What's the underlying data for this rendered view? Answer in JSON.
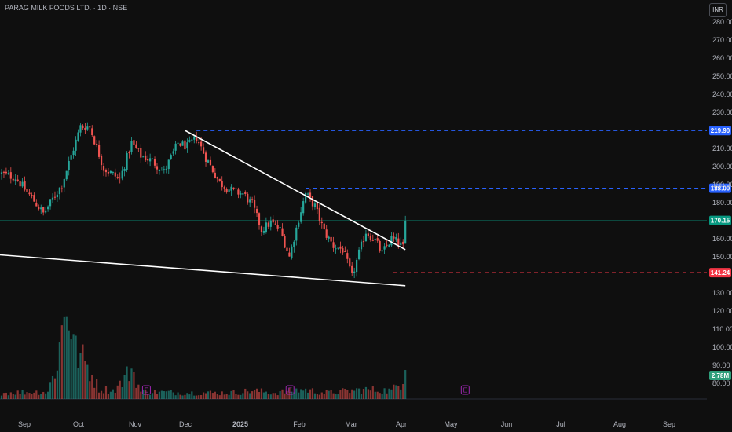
{
  "header": {
    "title": "PARAG MILK FOODS LTD. · 1D · NSE",
    "currency": "INR"
  },
  "colors": {
    "background": "#0f0f0f",
    "up": "#26a69a",
    "down": "#ef5350",
    "trendline": "#ffffff",
    "resistance": "#2962ff",
    "support": "#f23645",
    "last_price": "#089981",
    "volume_badge": "#2e9e7b",
    "earnings": "#9c27b0"
  },
  "chart_data": {
    "type": "candlestick",
    "y_axis": {
      "ticks": [
        280,
        270,
        260,
        250,
        240,
        230,
        210,
        200,
        190,
        180,
        160,
        150,
        130,
        120,
        110,
        100,
        90,
        80
      ],
      "tick_labels": [
        "280.00",
        "270.00",
        "260.00",
        "250.00",
        "240.00",
        "230.00",
        "210.00",
        "200.00",
        "190.00",
        "180.00",
        "160.00",
        "150.00",
        "130.00",
        "120.00",
        "110.00",
        "100.00",
        "90.00",
        "80.00"
      ]
    },
    "x_axis": {
      "labels": [
        "Sep",
        "Oct",
        "Nov",
        "Dec",
        "2025",
        "Feb",
        "Mar",
        "Apr",
        "May",
        "Jun",
        "Jul",
        "Aug",
        "Sep"
      ]
    },
    "price_levels": [
      {
        "name": "resistance-high",
        "value": 219.9,
        "label": "219.90",
        "style": "dashed"
      },
      {
        "name": "resistance-mid",
        "value": 188.0,
        "label": "188.00",
        "style": "dashed"
      },
      {
        "name": "last-price",
        "value": 170.15,
        "label": "170.15",
        "style": "solid"
      },
      {
        "name": "support",
        "value": 141.24,
        "label": "141.24",
        "style": "dashed"
      }
    ],
    "volume_label": "2.78M",
    "earnings_markers": [
      {
        "date": "Nov",
        "label": "E"
      },
      {
        "date": "Feb",
        "label": "E"
      },
      {
        "date": "May",
        "label": "E"
      }
    ],
    "trendlines": [
      {
        "name": "upper-trendline",
        "from": {
          "date": "Dec",
          "price": 220
        },
        "to": {
          "date": "Apr",
          "price": 154
        }
      },
      {
        "name": "lower-trendline",
        "from": {
          "date": "Aug",
          "price": 152
        },
        "to": {
          "date": "Apr",
          "price": 134
        }
      }
    ],
    "anchors": [
      {
        "idx": 0,
        "price": 196
      },
      {
        "idx": 6,
        "price": 194
      },
      {
        "idx": 14,
        "price": 181
      },
      {
        "idx": 18,
        "price": 174
      },
      {
        "idx": 26,
        "price": 190
      },
      {
        "idx": 34,
        "price": 222
      },
      {
        "idx": 38,
        "price": 222
      },
      {
        "idx": 44,
        "price": 199
      },
      {
        "idx": 51,
        "price": 193
      },
      {
        "idx": 56,
        "price": 213
      },
      {
        "idx": 60,
        "price": 206
      },
      {
        "idx": 65,
        "price": 203
      },
      {
        "idx": 70,
        "price": 197
      },
      {
        "idx": 76,
        "price": 213
      },
      {
        "idx": 80,
        "price": 211
      },
      {
        "idx": 84,
        "price": 216
      },
      {
        "idx": 88,
        "price": 205
      },
      {
        "idx": 94,
        "price": 191
      },
      {
        "idx": 100,
        "price": 186
      },
      {
        "idx": 104,
        "price": 185
      },
      {
        "idx": 108,
        "price": 179
      },
      {
        "idx": 112,
        "price": 165
      },
      {
        "idx": 116,
        "price": 169
      },
      {
        "idx": 120,
        "price": 165
      },
      {
        "idx": 124,
        "price": 150
      },
      {
        "idx": 128,
        "price": 171
      },
      {
        "idx": 131,
        "price": 185
      },
      {
        "idx": 135,
        "price": 178
      },
      {
        "idx": 139,
        "price": 164
      },
      {
        "idx": 143,
        "price": 156
      },
      {
        "idx": 147,
        "price": 154
      },
      {
        "idx": 151,
        "price": 139
      },
      {
        "idx": 154,
        "price": 152
      },
      {
        "idx": 157,
        "price": 164
      },
      {
        "idx": 161,
        "price": 159
      },
      {
        "idx": 164,
        "price": 152
      },
      {
        "idx": 168,
        "price": 160
      },
      {
        "idx": 171,
        "price": 158
      },
      {
        "idx": 173,
        "price": 155
      },
      {
        "idx": 174,
        "price": 170
      }
    ],
    "volume_anchors": [
      {
        "idx": 0,
        "v": 0.6
      },
      {
        "idx": 20,
        "v": 0.7
      },
      {
        "idx": 24,
        "v": 3.5
      },
      {
        "idx": 28,
        "v": 9.5
      },
      {
        "idx": 32,
        "v": 4.5
      },
      {
        "idx": 36,
        "v": 3.5
      },
      {
        "idx": 42,
        "v": 1.0
      },
      {
        "idx": 48,
        "v": 0.8
      },
      {
        "idx": 52,
        "v": 1.6
      },
      {
        "idx": 56,
        "v": 3.0
      },
      {
        "idx": 60,
        "v": 0.7
      },
      {
        "idx": 80,
        "v": 0.6
      },
      {
        "idx": 100,
        "v": 0.6
      },
      {
        "idx": 108,
        "v": 0.8
      },
      {
        "idx": 118,
        "v": 0.6
      },
      {
        "idx": 130,
        "v": 0.9
      },
      {
        "idx": 140,
        "v": 0.6
      },
      {
        "idx": 156,
        "v": 0.9
      },
      {
        "idx": 168,
        "v": 0.8
      },
      {
        "idx": 172,
        "v": 1.6
      },
      {
        "idx": 174,
        "v": 2.78
      }
    ]
  }
}
